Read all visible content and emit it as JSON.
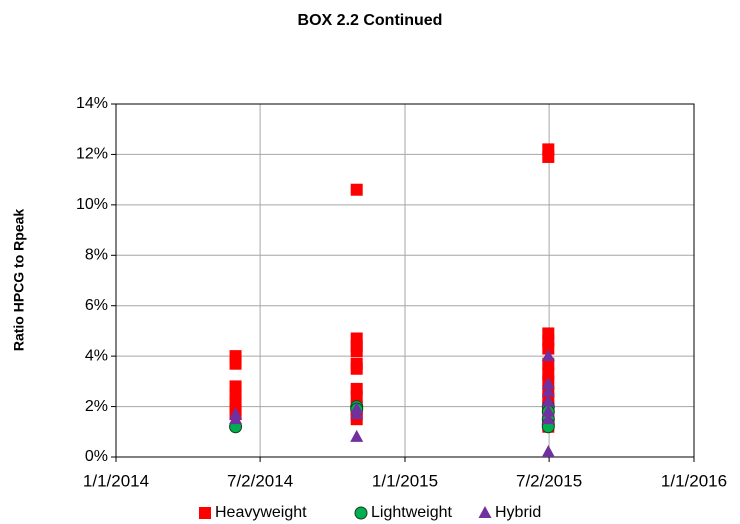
{
  "chart_data": {
    "type": "scatter",
    "title": "BOX 2.2  Continued",
    "y_label": "Ratio HPCG to Rpeak",
    "xlim": [
      "1/1/2014",
      "1/1/2016"
    ],
    "xticks": [
      "1/1/2014",
      "7/2/2014",
      "1/1/2015",
      "7/2/2015",
      "1/1/2016"
    ],
    "ylim": [
      0,
      14
    ],
    "yticks": [
      {
        "value": 0,
        "label": "0%"
      },
      {
        "value": 2,
        "label": "2%"
      },
      {
        "value": 4,
        "label": "4%"
      },
      {
        "value": 6,
        "label": "6%"
      },
      {
        "value": 8,
        "label": "8%"
      },
      {
        "value": 10,
        "label": "10%"
      },
      {
        "value": 12,
        "label": "12%"
      },
      {
        "value": 14,
        "label": "14%"
      }
    ],
    "grid": true,
    "legend": "bottom",
    "series": [
      {
        "name": "Heavyweight",
        "color": "#ff0000",
        "marker": "square",
        "x": [
          "6/1/2014",
          "6/1/2014",
          "6/1/2014",
          "6/1/2014",
          "6/1/2014",
          "6/1/2014",
          "6/1/2014",
          "11/1/2014",
          "11/1/2014",
          "11/1/2014",
          "11/1/2014",
          "11/1/2014",
          "11/1/2014",
          "11/1/2014",
          "11/1/2014",
          "11/1/2014",
          "11/1/2014",
          "11/1/2014",
          "7/1/2015",
          "7/1/2015",
          "7/1/2015",
          "7/1/2015",
          "7/1/2015",
          "7/1/2015",
          "7/1/2015",
          "7/1/2015",
          "7/1/2015",
          "7/1/2015",
          "7/1/2015",
          "7/1/2015",
          "7/1/2015",
          "7/1/2015"
        ],
        "values": [
          4.0,
          3.7,
          2.8,
          2.5,
          2.2,
          1.9,
          1.7,
          10.6,
          4.7,
          4.4,
          4.2,
          3.7,
          3.5,
          2.7,
          2.4,
          2.0,
          1.7,
          1.5,
          12.2,
          11.9,
          4.9,
          4.6,
          4.3,
          3.7,
          3.3,
          3.0,
          2.6,
          2.3,
          2.0,
          1.7,
          1.4,
          1.2
        ]
      },
      {
        "name": "Lightweight",
        "color": "#00b050",
        "marker": "circle",
        "x": [
          "6/1/2014",
          "11/1/2014",
          "11/1/2014",
          "7/1/2015",
          "7/1/2015",
          "7/1/2015",
          "7/1/2015",
          "7/1/2015"
        ],
        "values": [
          1.2,
          2.0,
          1.9,
          2.0,
          1.8,
          1.5,
          1.3,
          1.2
        ]
      },
      {
        "name": "Hybrid",
        "color": "#7030a0",
        "marker": "triangle",
        "x": [
          "6/1/2014",
          "6/1/2014",
          "11/1/2014",
          "11/1/2014",
          "11/1/2014",
          "7/1/2015",
          "7/1/2015",
          "7/1/2015",
          "7/1/2015",
          "7/1/2015",
          "7/1/2015",
          "7/1/2015"
        ],
        "values": [
          1.7,
          1.5,
          1.9,
          1.7,
          0.8,
          4.0,
          2.9,
          2.6,
          2.2,
          1.8,
          1.5,
          0.2
        ]
      }
    ]
  }
}
